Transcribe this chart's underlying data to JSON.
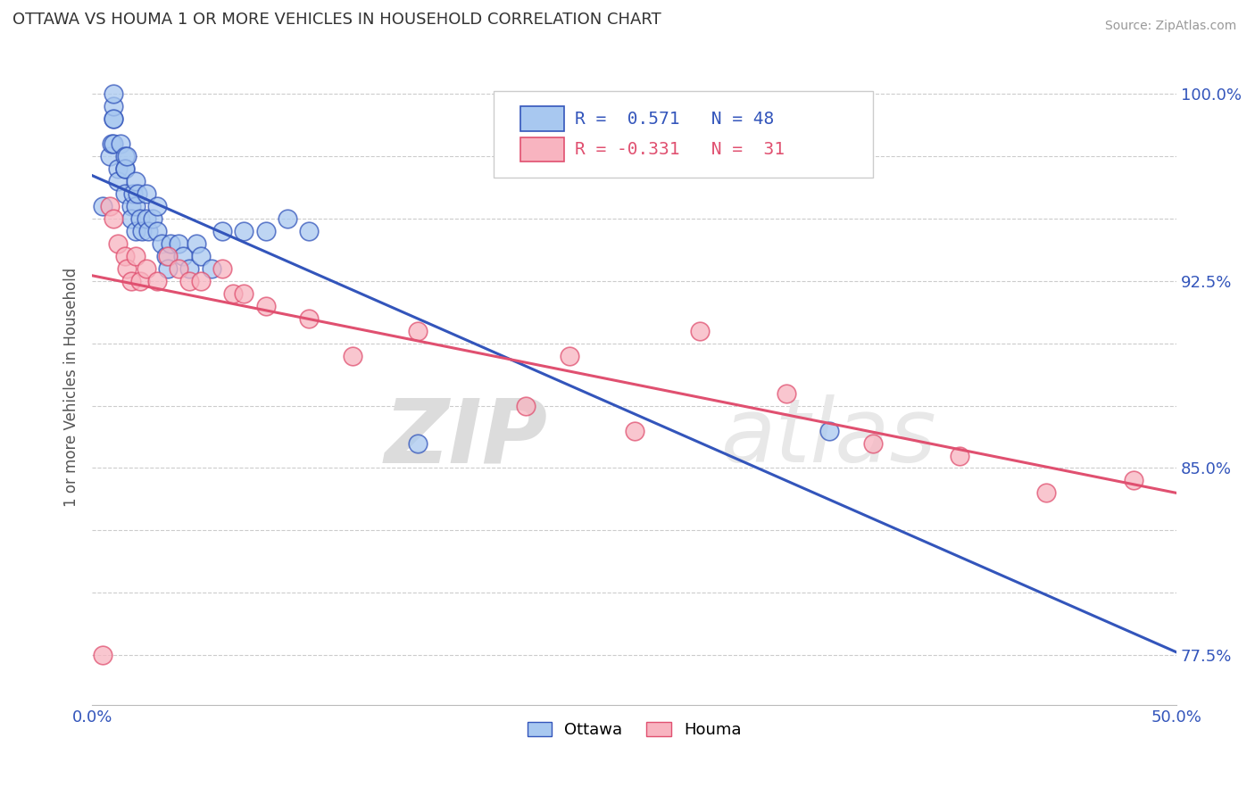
{
  "title": "OTTAWA VS HOUMA 1 OR MORE VEHICLES IN HOUSEHOLD CORRELATION CHART",
  "source": "Source: ZipAtlas.com",
  "ylabel": "1 or more Vehicles in Household",
  "xlim": [
    0.0,
    0.5
  ],
  "ylim": [
    0.755,
    1.01
  ],
  "ottawa_color": "#A8C8F0",
  "houma_color": "#F8B4C0",
  "ottawa_line_color": "#3355BB",
  "houma_line_color": "#E05070",
  "ottawa_R": 0.571,
  "ottawa_N": 48,
  "houma_R": -0.331,
  "houma_N": 31,
  "ottawa_x": [
    0.005,
    0.008,
    0.009,
    0.01,
    0.01,
    0.01,
    0.01,
    0.01,
    0.012,
    0.012,
    0.013,
    0.015,
    0.015,
    0.015,
    0.015,
    0.016,
    0.018,
    0.018,
    0.019,
    0.02,
    0.02,
    0.02,
    0.021,
    0.022,
    0.023,
    0.025,
    0.025,
    0.026,
    0.028,
    0.03,
    0.03,
    0.032,
    0.034,
    0.035,
    0.036,
    0.04,
    0.042,
    0.045,
    0.048,
    0.05,
    0.055,
    0.06,
    0.07,
    0.08,
    0.09,
    0.1,
    0.15,
    0.34
  ],
  "ottawa_y": [
    0.955,
    0.975,
    0.98,
    0.98,
    0.99,
    0.995,
    0.99,
    1.0,
    0.97,
    0.965,
    0.98,
    0.975,
    0.97,
    0.97,
    0.96,
    0.975,
    0.955,
    0.95,
    0.96,
    0.965,
    0.955,
    0.945,
    0.96,
    0.95,
    0.945,
    0.96,
    0.95,
    0.945,
    0.95,
    0.945,
    0.955,
    0.94,
    0.935,
    0.93,
    0.94,
    0.94,
    0.935,
    0.93,
    0.94,
    0.935,
    0.93,
    0.945,
    0.945,
    0.945,
    0.95,
    0.945,
    0.86,
    0.865
  ],
  "houma_x": [
    0.005,
    0.008,
    0.01,
    0.012,
    0.015,
    0.016,
    0.018,
    0.02,
    0.022,
    0.025,
    0.03,
    0.035,
    0.04,
    0.045,
    0.05,
    0.06,
    0.065,
    0.07,
    0.08,
    0.1,
    0.12,
    0.15,
    0.2,
    0.22,
    0.25,
    0.28,
    0.32,
    0.36,
    0.4,
    0.44,
    0.48
  ],
  "houma_y": [
    0.775,
    0.955,
    0.95,
    0.94,
    0.935,
    0.93,
    0.925,
    0.935,
    0.925,
    0.93,
    0.925,
    0.935,
    0.93,
    0.925,
    0.925,
    0.93,
    0.92,
    0.92,
    0.915,
    0.91,
    0.895,
    0.905,
    0.875,
    0.895,
    0.865,
    0.905,
    0.88,
    0.86,
    0.855,
    0.84,
    0.845
  ],
  "ytick_positions": [
    0.775,
    0.8,
    0.825,
    0.85,
    0.875,
    0.9,
    0.925,
    0.95,
    0.975,
    1.0
  ],
  "ytick_labels_shown": {
    "0.775": "77.5%",
    "0.85": "85.0%",
    "0.925": "92.5%",
    "1.0": "100.0%"
  },
  "watermark_zip": "ZIP",
  "watermark_atlas": "atlas",
  "background_color": "#FFFFFF",
  "grid_color": "#CCCCCC"
}
